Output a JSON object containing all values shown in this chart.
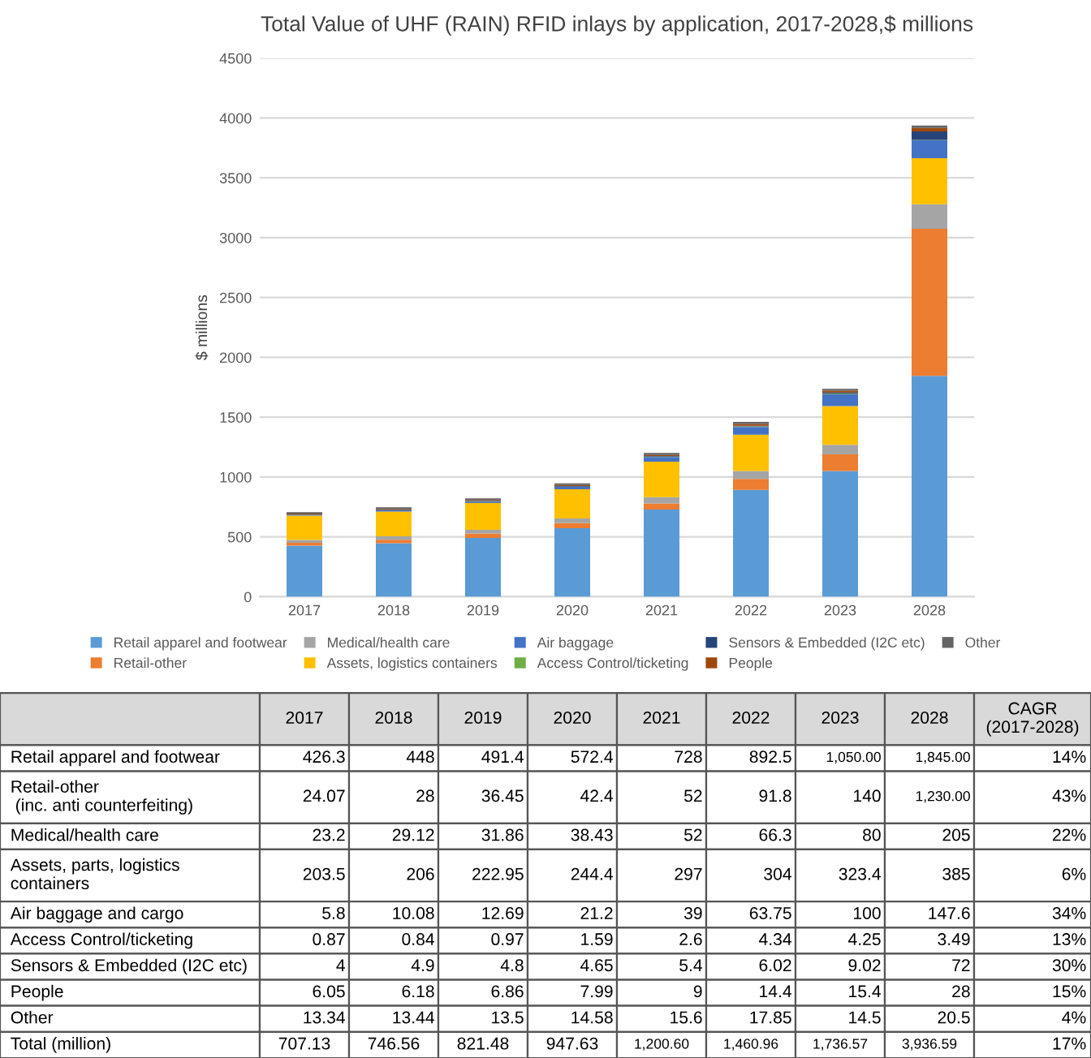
{
  "chart_data": {
    "type": "bar",
    "stacked": true,
    "title": "Total Value of UHF (RAIN) RFID inlays by application, 2017-2028,$ millions",
    "ylabel": "$ millions",
    "categories": [
      "2017",
      "2018",
      "2019",
      "2020",
      "2021",
      "2022",
      "2023",
      "2028"
    ],
    "series": [
      {
        "name": "Retail apparel and footwear",
        "color": "#5b9bd5",
        "values": [
          426.3,
          448,
          491.4,
          572.4,
          728,
          892.5,
          1050,
          1845
        ],
        "value_labels": [
          "426.3",
          "448",
          "491.4",
          "572.4",
          "728",
          "892.5",
          "1,050.00",
          "1,845.00"
        ]
      },
      {
        "name": "Retail-other",
        "color": "#ed7d31",
        "values": [
          24.07,
          28,
          36.45,
          42.4,
          52,
          91.8,
          140,
          1230
        ],
        "value_labels": [
          "24.07",
          "28",
          "36.45",
          "42.4",
          "52",
          "91.8",
          "140",
          "1,230.00"
        ]
      },
      {
        "name": "Medical/health care",
        "color": "#a5a5a5",
        "values": [
          23.2,
          29.12,
          31.86,
          38.43,
          52,
          66.3,
          80,
          205
        ],
        "value_labels": [
          "23.2",
          "29.12",
          "31.86",
          "38.43",
          "52",
          "66.3",
          "80",
          "205"
        ]
      },
      {
        "name": "Assets, logistics containers",
        "color": "#ffc000",
        "values": [
          203.5,
          206,
          222.95,
          244.4,
          297,
          304,
          323.4,
          385
        ],
        "value_labels": [
          "203.5",
          "206",
          "222.95",
          "244.4",
          "297",
          "304",
          "323.4",
          "385"
        ]
      },
      {
        "name": "Air baggage",
        "color": "#4472c4",
        "values": [
          5.8,
          10.08,
          12.69,
          21.2,
          39,
          63.75,
          100,
          147.6
        ],
        "value_labels": [
          "5.8",
          "10.08",
          "12.69",
          "21.2",
          "39",
          "63.75",
          "100",
          "147.6"
        ]
      },
      {
        "name": "Access Control/ticketing",
        "color": "#70ad47",
        "values": [
          0.87,
          0.84,
          0.97,
          1.59,
          2.6,
          4.34,
          4.25,
          3.49
        ],
        "value_labels": [
          "0.87",
          "0.84",
          "0.97",
          "1.59",
          "2.6",
          "4.34",
          "4.25",
          "3.49"
        ]
      },
      {
        "name": "Sensors & Embedded (I2C etc)",
        "color": "#264478",
        "values": [
          4,
          4.9,
          4.8,
          4.65,
          5.4,
          6.02,
          9.02,
          72
        ],
        "value_labels": [
          "4",
          "4.9",
          "4.8",
          "4.65",
          "5.4",
          "6.02",
          "9.02",
          "72"
        ]
      },
      {
        "name": "People",
        "color": "#9e480e",
        "values": [
          6.05,
          6.18,
          6.86,
          7.99,
          9,
          14.4,
          15.4,
          28
        ],
        "value_labels": [
          "6.05",
          "6.18",
          "6.86",
          "7.99",
          "9",
          "14.4",
          "15.4",
          "28"
        ]
      },
      {
        "name": "Other",
        "color": "#636363",
        "values": [
          13.34,
          13.44,
          13.5,
          14.58,
          15.6,
          17.85,
          14.5,
          20.5
        ],
        "value_labels": [
          "13.34",
          "13.44",
          "13.5",
          "14.58",
          "15.6",
          "17.85",
          "14.5",
          "20.5"
        ]
      }
    ],
    "annotations": [
      "Retail apparel and footwear",
      "Retail-other\n (inc. anti counterfeiting)",
      "Medical/health care",
      "Assets, parts, logistics\ncontainers",
      "Air baggage and cargo",
      "Access Control/ticketing",
      "Sensors & Embedded (I2C etc)",
      "People",
      "Other",
      "Total (million)",
      "CAGR\n(2017-2028)",
      "14%",
      "43%",
      "22%",
      "6%",
      "34%",
      "13%",
      "30%",
      "15%",
      "4%",
      "17%",
      "707.13",
      "746.56",
      "821.48",
      "947.63",
      "1,200.60",
      "1,460.96",
      "1,736.57",
      "3,936.59"
    ],
    "ylim": [
      0,
      4500
    ],
    "yticks": [
      0,
      500,
      1000,
      1500,
      2000,
      2500,
      3000,
      3500,
      4000,
      4500
    ],
    "grid": "y",
    "legend": "bottom"
  }
}
